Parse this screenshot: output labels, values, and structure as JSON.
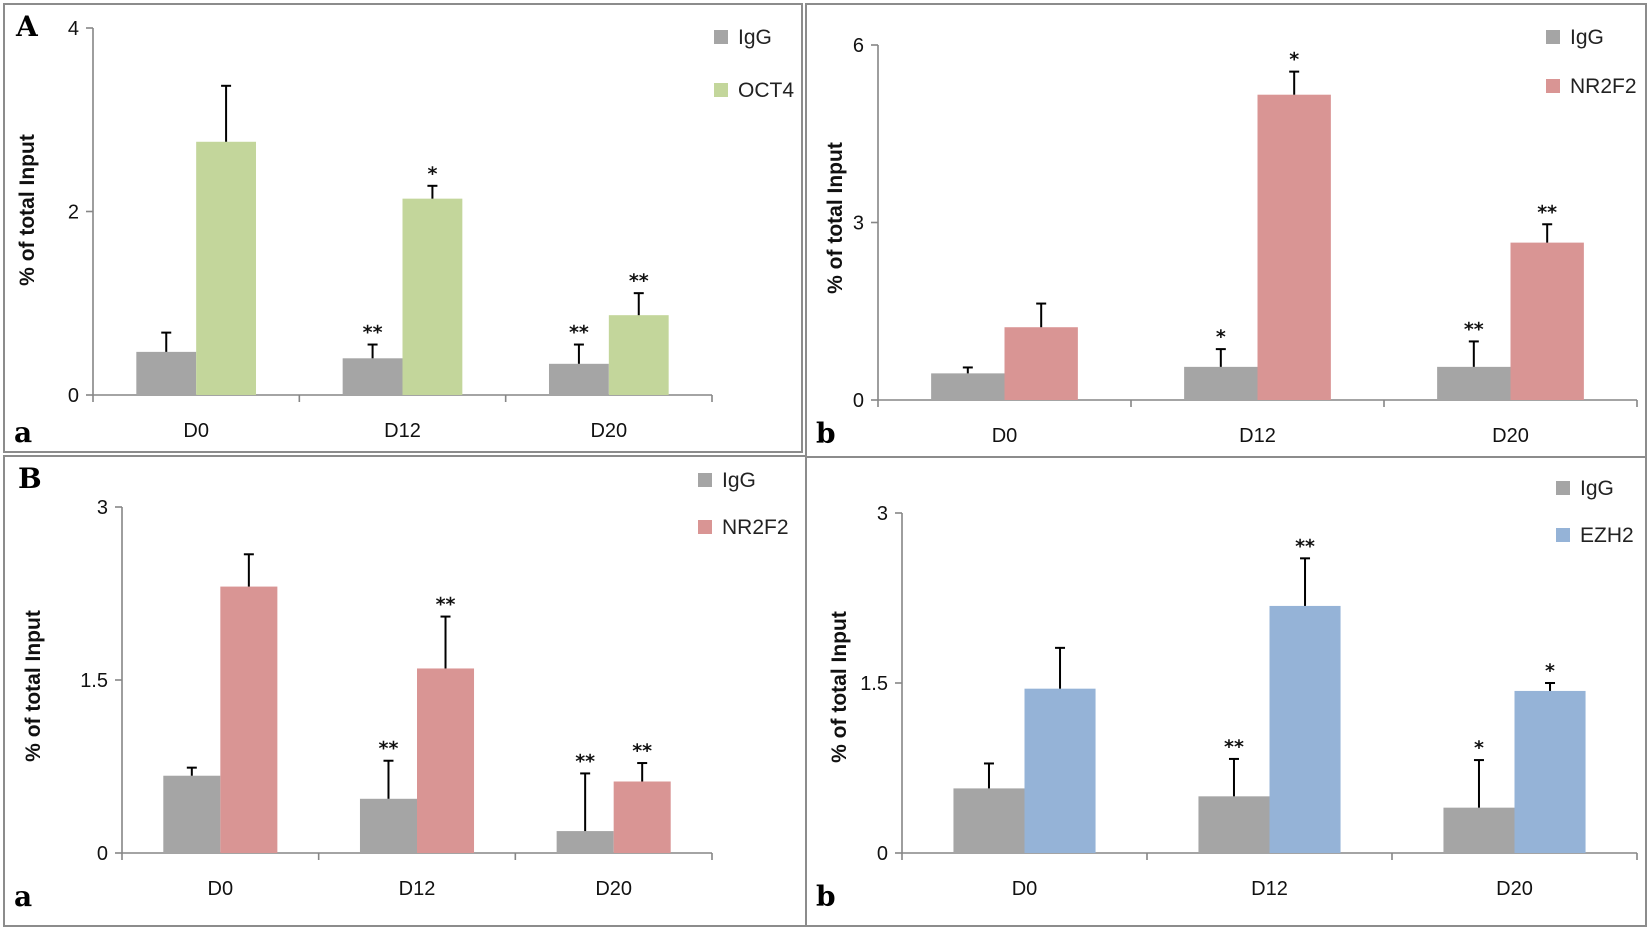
{
  "chart_data": [
    {
      "type": "bar",
      "panel_labels": [
        "A",
        "a"
      ],
      "categories": [
        "D0",
        "D12",
        "D20"
      ],
      "ylabel": "% of total Input",
      "ylim": [
        0,
        4
      ],
      "yticks": [
        0,
        2,
        4
      ],
      "ytick_labels": [
        "0",
        "2",
        "4"
      ],
      "series": [
        {
          "name": "IgG",
          "color": "#a5a5a5",
          "values": [
            0.47,
            0.4,
            0.34
          ],
          "errors": [
            0.21,
            0.15,
            0.21
          ],
          "sig": [
            "",
            "**",
            "**"
          ]
        },
        {
          "name": "OCT4",
          "color": "#c3d69b",
          "values": [
            2.76,
            2.14,
            0.87
          ],
          "errors": [
            0.61,
            0.14,
            0.24
          ],
          "sig": [
            "",
            "*",
            "**"
          ]
        }
      ]
    },
    {
      "type": "bar",
      "panel_labels": [
        "",
        "b"
      ],
      "categories": [
        "D0",
        "D12",
        "D20"
      ],
      "ylabel": "% of total Input",
      "ylim": [
        0,
        6
      ],
      "yticks": [
        0,
        3,
        6
      ],
      "ytick_labels": [
        "0",
        "3",
        "6"
      ],
      "series": [
        {
          "name": "IgG",
          "color": "#a5a5a5",
          "values": [
            0.45,
            0.56,
            0.56
          ],
          "errors": [
            0.1,
            0.3,
            0.43
          ],
          "sig": [
            "",
            "*",
            "**"
          ]
        },
        {
          "name": "NR2F2",
          "color": "#d99594",
          "values": [
            1.23,
            5.16,
            2.66
          ],
          "errors": [
            0.4,
            0.39,
            0.31
          ],
          "sig": [
            "",
            "*",
            "**"
          ]
        }
      ]
    },
    {
      "type": "bar",
      "panel_labels": [
        "B",
        "a"
      ],
      "categories": [
        "D0",
        "D12",
        "D20"
      ],
      "ylabel": "% of total Input",
      "ylim": [
        0,
        3
      ],
      "yticks": [
        0,
        1.5,
        3
      ],
      "ytick_labels": [
        "0",
        "1.5",
        "3"
      ],
      "series": [
        {
          "name": "IgG",
          "color": "#a5a5a5",
          "values": [
            0.67,
            0.47,
            0.19
          ],
          "errors": [
            0.07,
            0.33,
            0.5
          ],
          "sig": [
            "",
            "**",
            "**"
          ]
        },
        {
          "name": "NR2F2",
          "color": "#d99594",
          "values": [
            2.31,
            1.6,
            0.62
          ],
          "errors": [
            0.28,
            0.45,
            0.16
          ],
          "sig": [
            "",
            "**",
            "**"
          ]
        }
      ]
    },
    {
      "type": "bar",
      "panel_labels": [
        "",
        "b"
      ],
      "categories": [
        "D0",
        "D12",
        "D20"
      ],
      "ylabel": "% of total Input",
      "ylim": [
        0,
        3
      ],
      "yticks": [
        0,
        1.5,
        3
      ],
      "ytick_labels": [
        "0",
        "1.5",
        "3"
      ],
      "series": [
        {
          "name": "IgG",
          "color": "#a5a5a5",
          "values": [
            0.57,
            0.5,
            0.4
          ],
          "errors": [
            0.22,
            0.33,
            0.42
          ],
          "sig": [
            "",
            "**",
            "*"
          ]
        },
        {
          "name": "EZH2",
          "color": "#95b3d7",
          "values": [
            1.45,
            2.18,
            1.43
          ],
          "errors": [
            0.36,
            0.42,
            0.07
          ],
          "sig": [
            "",
            "**",
            "*"
          ]
        }
      ]
    }
  ]
}
